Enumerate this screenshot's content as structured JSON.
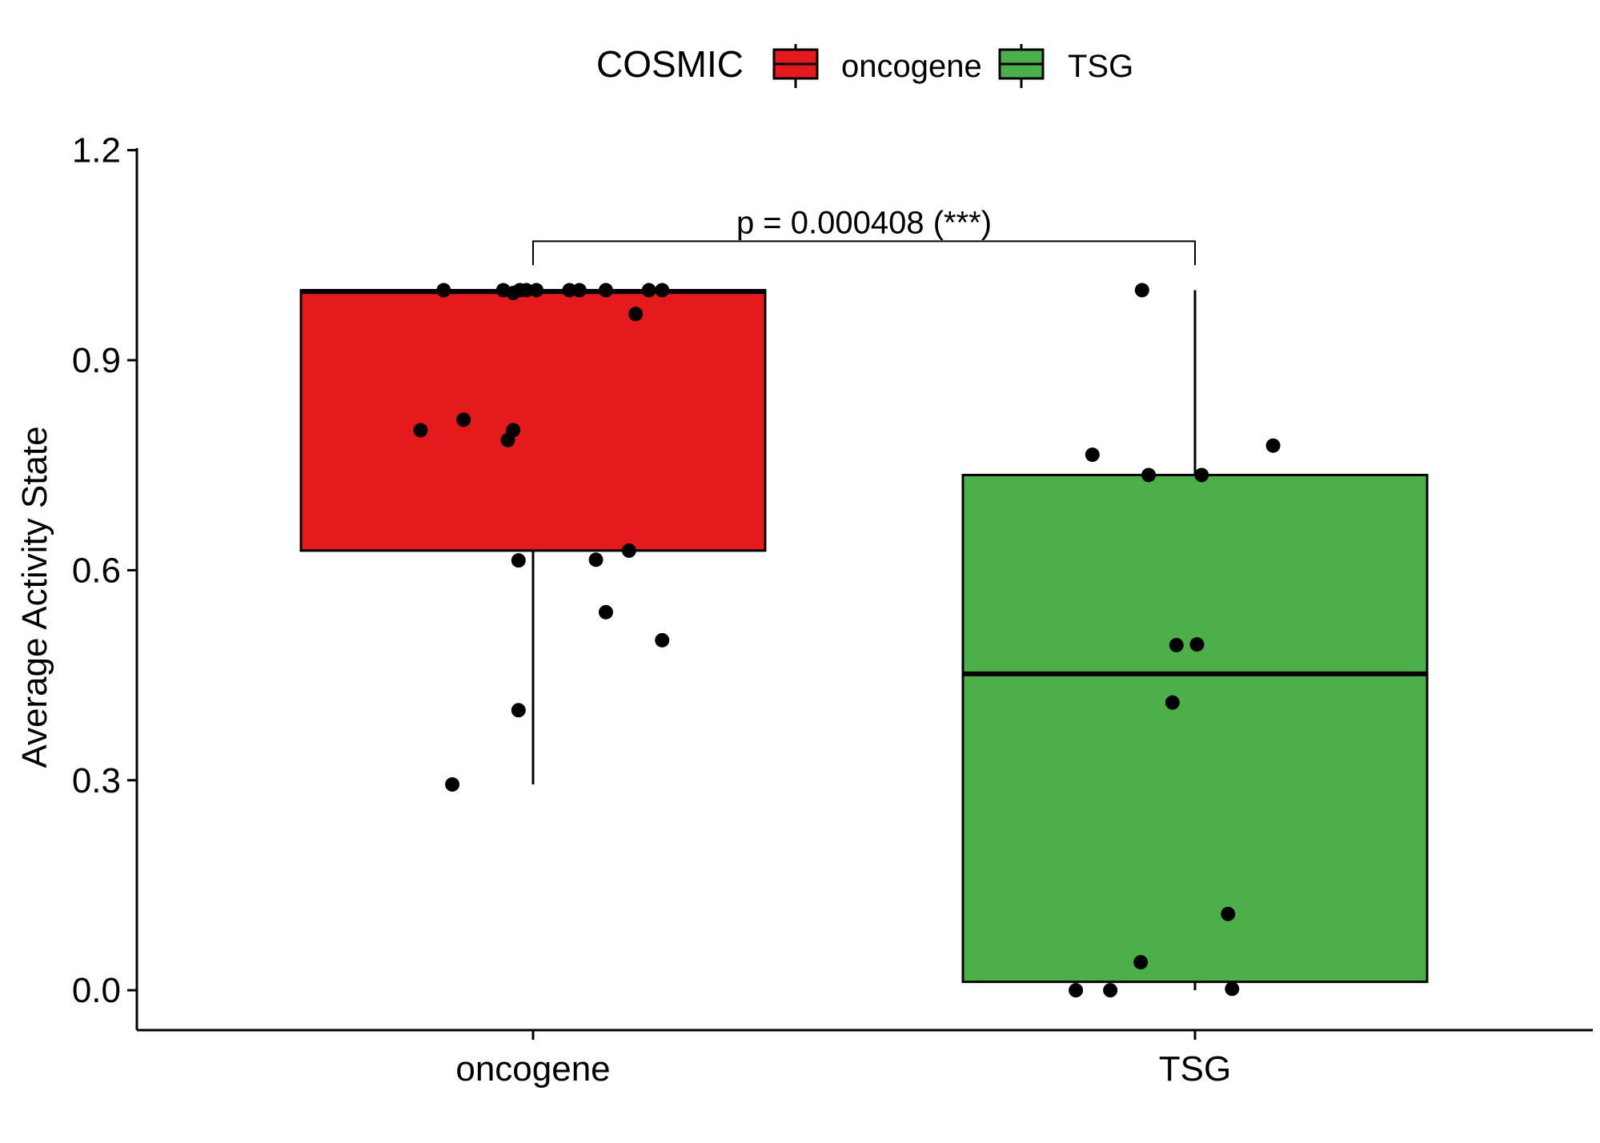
{
  "chart_data": {
    "type": "box",
    "ylabel": "Average Activity State",
    "ylim": [
      -0.057,
      1.203
    ],
    "yticks": [
      "0.0",
      "0.3",
      "0.6",
      "0.9",
      "1.2"
    ],
    "ytick_values": [
      0.0,
      0.3,
      0.6,
      0.9,
      1.2
    ],
    "categories": [
      "oncogene",
      "TSG"
    ],
    "legend": {
      "title": "COSMIC",
      "position": "top",
      "entries": [
        {
          "label": "oncogene",
          "color": "#E41A1C"
        },
        {
          "label": "TSG",
          "color": "#4DAF4A"
        }
      ]
    },
    "boxes": [
      {
        "category": "oncogene",
        "color": "#E41A1C",
        "whisker_low": 0.294,
        "q1": 0.628,
        "median": 0.998,
        "q3": 1.0,
        "whisker_high": 1.0
      },
      {
        "category": "TSG",
        "color": "#4DAF4A",
        "whisker_low": 0.0,
        "q1": 0.012,
        "median": 0.452,
        "q3": 0.736,
        "whisker_high": 1.0
      }
    ],
    "points": [
      {
        "category": "oncogene",
        "x": -0.135,
        "y": 1.0
      },
      {
        "category": "oncogene",
        "x": -0.045,
        "y": 1.0
      },
      {
        "category": "oncogene",
        "x": -0.03,
        "y": 0.996
      },
      {
        "category": "oncogene",
        "x": -0.02,
        "y": 1.0
      },
      {
        "category": "oncogene",
        "x": -0.01,
        "y": 1.0
      },
      {
        "category": "oncogene",
        "x": 0.005,
        "y": 1.0
      },
      {
        "category": "oncogene",
        "x": 0.055,
        "y": 1.0
      },
      {
        "category": "oncogene",
        "x": 0.07,
        "y": 1.0
      },
      {
        "category": "oncogene",
        "x": 0.11,
        "y": 1.0
      },
      {
        "category": "oncogene",
        "x": 0.175,
        "y": 1.0
      },
      {
        "category": "oncogene",
        "x": 0.195,
        "y": 1.0
      },
      {
        "category": "oncogene",
        "x": 0.155,
        "y": 0.966
      },
      {
        "category": "oncogene",
        "x": -0.17,
        "y": 0.8
      },
      {
        "category": "oncogene",
        "x": -0.105,
        "y": 0.815
      },
      {
        "category": "oncogene",
        "x": -0.03,
        "y": 0.8
      },
      {
        "category": "oncogene",
        "x": -0.038,
        "y": 0.786
      },
      {
        "category": "oncogene",
        "x": -0.022,
        "y": 0.614
      },
      {
        "category": "oncogene",
        "x": 0.095,
        "y": 0.615
      },
      {
        "category": "oncogene",
        "x": 0.145,
        "y": 0.628
      },
      {
        "category": "oncogene",
        "x": 0.11,
        "y": 0.54
      },
      {
        "category": "oncogene",
        "x": 0.195,
        "y": 0.5
      },
      {
        "category": "oncogene",
        "x": -0.022,
        "y": 0.4
      },
      {
        "category": "oncogene",
        "x": -0.122,
        "y": 0.294
      },
      {
        "category": "TSG",
        "x": -0.08,
        "y": 1.0
      },
      {
        "category": "TSG",
        "x": -0.155,
        "y": 0.765
      },
      {
        "category": "TSG",
        "x": 0.118,
        "y": 0.778
      },
      {
        "category": "TSG",
        "x": -0.07,
        "y": 0.736
      },
      {
        "category": "TSG",
        "x": 0.01,
        "y": 0.736
      },
      {
        "category": "TSG",
        "x": -0.028,
        "y": 0.493
      },
      {
        "category": "TSG",
        "x": 0.003,
        "y": 0.494
      },
      {
        "category": "TSG",
        "x": -0.034,
        "y": 0.411
      },
      {
        "category": "TSG",
        "x": 0.05,
        "y": 0.109
      },
      {
        "category": "TSG",
        "x": -0.082,
        "y": 0.04
      },
      {
        "category": "TSG",
        "x": -0.18,
        "y": 0.0
      },
      {
        "category": "TSG",
        "x": -0.128,
        "y": 0.0
      },
      {
        "category": "TSG",
        "x": 0.056,
        "y": 0.002
      }
    ],
    "annotation": {
      "text": "p = 0.000408 (***)",
      "from": "oncogene",
      "to": "TSG",
      "y": 1.07
    }
  }
}
